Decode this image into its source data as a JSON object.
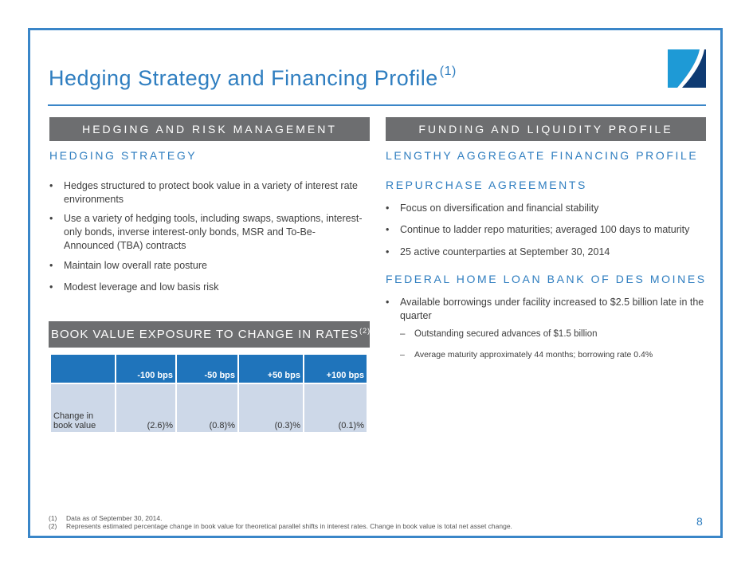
{
  "title": "Hedging Strategy and Financing Profile",
  "title_sup": "(1)",
  "left": {
    "bar": "HEDGING AND RISK MANAGEMENT",
    "heading": "HEDGING STRATEGY",
    "bullets": [
      "Hedges structured to protect book value in a variety of interest rate environments",
      "Use a variety of hedging tools, including swaps, swaptions, interest-only bonds, inverse interest-only bonds, MSR and To-Be-Announced (TBA) contracts",
      "Maintain low overall rate posture",
      "Modest leverage and low basis risk"
    ],
    "table_bar": "BOOK VALUE EXPOSURE TO CHANGE IN RATES",
    "table_bar_sup": "(2)",
    "table": {
      "headers": [
        "",
        "-100 bps",
        "-50 bps",
        "+50 bps",
        "+100 bps"
      ],
      "row": [
        "Change in book value",
        "(2.6)%",
        "(0.8)%",
        "(0.3)%",
        "(0.1)%"
      ]
    }
  },
  "right": {
    "bar": "FUNDING AND LIQUIDITY PROFILE",
    "heading": "LENGTHY AGGREGATE FINANCING PROFILE",
    "repo_heading": "REPURCHASE AGREEMENTS",
    "repo_bullets": [
      "Focus on diversification and financial stability",
      "Continue to ladder repo maturities; averaged 100 days to maturity",
      "25 active counterparties at September 30, 2014"
    ],
    "fhlb_heading": "FEDERAL HOME LOAN BANK OF DES MOINES",
    "fhlb_bullet": "Available borrowings under facility increased to $2.5 billion late in the quarter",
    "fhlb_sub": [
      "Outstanding secured advances of $1.5 billion",
      "Average maturity approximately 44 months; borrowing rate 0.4%"
    ]
  },
  "footnotes": [
    {
      "n": "(1)",
      "t": "Data as of September 30, 2014."
    },
    {
      "n": "(2)",
      "t": "Represents estimated percentage change in book value for theoretical parallel shifts in interest rates.  Change in book value is total net asset change."
    }
  ],
  "page_number": "8"
}
